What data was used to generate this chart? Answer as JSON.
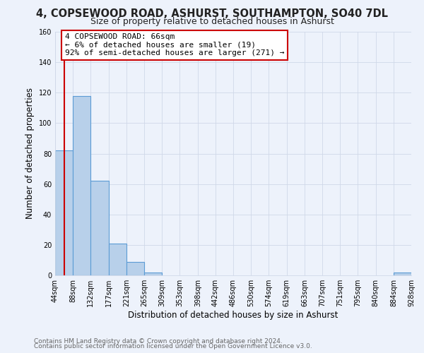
{
  "title": "4, COPSEWOOD ROAD, ASHURST, SOUTHAMPTON, SO40 7DL",
  "subtitle": "Size of property relative to detached houses in Ashurst",
  "xlabel": "Distribution of detached houses by size in Ashurst",
  "ylabel": "Number of detached properties",
  "bin_edges": [
    44,
    88,
    132,
    177,
    221,
    265,
    309,
    353,
    398,
    442,
    486,
    530,
    574,
    619,
    663,
    707,
    751,
    795,
    840,
    884,
    928
  ],
  "bin_counts": [
    82,
    118,
    62,
    21,
    9,
    2,
    0,
    0,
    0,
    0,
    0,
    0,
    0,
    0,
    0,
    0,
    0,
    0,
    0,
    2
  ],
  "bar_color": "#b8d0ea",
  "bar_edge_color": "#5b9bd5",
  "ylim": [
    0,
    160
  ],
  "yticks": [
    0,
    20,
    40,
    60,
    80,
    100,
    120,
    140,
    160
  ],
  "property_line_x": 66,
  "property_line_color": "#cc0000",
  "annotation_line1": "4 COPSEWOOD ROAD: 66sqm",
  "annotation_line2": "← 6% of detached houses are smaller (19)",
  "annotation_line3": "92% of semi-detached houses are larger (271) →",
  "annotation_box_color": "#cc0000",
  "annotation_box_bg": "#ffffff",
  "footer_line1": "Contains HM Land Registry data © Crown copyright and database right 2024.",
  "footer_line2": "Contains public sector information licensed under the Open Government Licence v3.0.",
  "bg_color": "#edf2fb",
  "grid_color": "#d0d8e8",
  "tick_labels": [
    "44sqm",
    "88sqm",
    "132sqm",
    "177sqm",
    "221sqm",
    "265sqm",
    "309sqm",
    "353sqm",
    "398sqm",
    "442sqm",
    "486sqm",
    "530sqm",
    "574sqm",
    "619sqm",
    "663sqm",
    "707sqm",
    "751sqm",
    "795sqm",
    "840sqm",
    "884sqm",
    "928sqm"
  ],
  "title_fontsize": 10.5,
  "subtitle_fontsize": 9,
  "axis_label_fontsize": 8.5,
  "tick_fontsize": 7,
  "footer_fontsize": 6.5,
  "annotation_fontsize": 8
}
